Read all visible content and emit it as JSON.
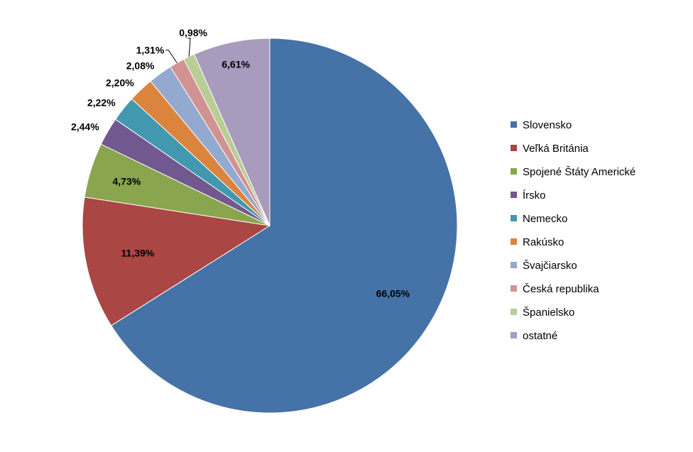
{
  "chart_data": {
    "type": "pie",
    "title": "",
    "legend_position": "right",
    "slices": [
      {
        "name": "Slovensko",
        "value": 66.05,
        "label": "66,05%",
        "color": "#4572A7"
      },
      {
        "name": "Veľká Británia",
        "value": 11.39,
        "label": "11,39%",
        "color": "#AA4643"
      },
      {
        "name": "Spojené Štáty Americké",
        "value": 4.73,
        "label": "4,73%",
        "color": "#89A54E"
      },
      {
        "name": "Írsko",
        "value": 2.44,
        "label": "2,44%",
        "color": "#71588F"
      },
      {
        "name": "Nemecko",
        "value": 2.22,
        "label": "2,22%",
        "color": "#4198AF"
      },
      {
        "name": "Rakúsko",
        "value": 2.2,
        "label": "2,20%",
        "color": "#DB843D"
      },
      {
        "name": "Švajčiarsko",
        "value": 2.08,
        "label": "2,08%",
        "color": "#93A9CF"
      },
      {
        "name": "Česká republika",
        "value": 1.31,
        "label": "1,31%",
        "color": "#D19392"
      },
      {
        "name": "Španielsko",
        "value": 0.98,
        "label": "0,98%",
        "color": "#B9CD96"
      },
      {
        "name": "ostatné",
        "value": 6.61,
        "label": "6,61%",
        "color": "#A99BBD"
      }
    ]
  }
}
